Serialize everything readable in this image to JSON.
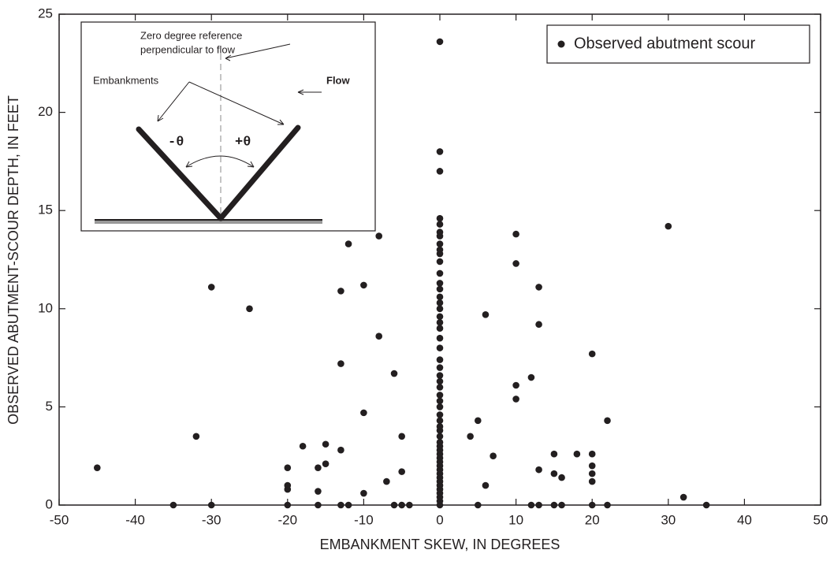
{
  "chart_data": {
    "type": "scatter",
    "x_label": "EMBANKMENT SKEW, IN DEGREES",
    "y_label": "OBSERVED ABUTMENT-SCOUR DEPTH, IN FEET",
    "xlim": [
      -50,
      50
    ],
    "xticks": [
      -50,
      -40,
      -30,
      -20,
      -10,
      0,
      10,
      20,
      30,
      40,
      50
    ],
    "ylim": [
      0,
      25
    ],
    "yticks": [
      0,
      5,
      10,
      15,
      20,
      25
    ],
    "legend": "upper right",
    "series": [
      {
        "name": "Observed abutment scour",
        "color": "#231f20",
        "x": [
          -45,
          -35,
          -32,
          -30,
          -30,
          -25,
          -20,
          -20,
          -20,
          -20,
          -18,
          -16,
          -16,
          -16,
          -15,
          -15,
          -13,
          -13,
          -13,
          -13,
          -12,
          -12,
          -10,
          -10,
          -10,
          -8,
          -8,
          -7,
          -6,
          -6,
          -5,
          -5,
          -5,
          -4,
          0,
          0,
          0,
          0,
          0,
          0,
          0,
          0,
          0,
          0,
          0,
          0,
          0,
          0,
          0,
          0,
          0,
          0,
          0,
          0,
          0,
          0,
          0,
          0,
          0,
          0,
          0,
          0,
          0,
          0,
          0,
          0,
          0,
          0,
          0,
          0,
          0,
          0,
          0,
          0,
          0,
          0,
          0,
          0,
          0,
          0,
          0,
          0,
          0,
          0,
          0,
          0,
          4,
          5,
          5,
          6,
          6,
          7,
          10,
          10,
          10,
          10,
          12,
          12,
          13,
          13,
          13,
          13,
          15,
          15,
          15,
          16,
          16,
          18,
          20,
          20,
          20,
          20,
          20,
          20,
          22,
          22,
          30,
          32,
          35
        ],
        "values": [
          1.9,
          0,
          3.5,
          0,
          11.1,
          10,
          0,
          0.8,
          1.0,
          1.9,
          3.0,
          0,
          0.7,
          1.9,
          2.1,
          3.1,
          0,
          2.8,
          7.2,
          10.9,
          0,
          13.3,
          0.6,
          4.7,
          11.2,
          8.6,
          13.7,
          1.2,
          0,
          6.7,
          0,
          1.7,
          3.5,
          0,
          0,
          0.2,
          0.4,
          0.6,
          0.8,
          1.0,
          1.2,
          1.4,
          1.6,
          1.8,
          2.0,
          2.2,
          2.4,
          2.6,
          2.8,
          3.0,
          3.2,
          3.5,
          3.8,
          4.0,
          4.3,
          4.6,
          5.0,
          5.3,
          5.6,
          6.0,
          6.3,
          6.6,
          7.0,
          7.4,
          8.0,
          8.5,
          9.0,
          9.3,
          9.6,
          10.0,
          10.3,
          10.6,
          11.0,
          11.3,
          11.8,
          12.4,
          12.8,
          13.0,
          13.3,
          13.7,
          13.9,
          14.3,
          14.6,
          17.0,
          18.0,
          23.6,
          3.5,
          0,
          4.3,
          1.0,
          9.7,
          2.5,
          5.4,
          6.1,
          12.3,
          13.8,
          0,
          6.5,
          0,
          1.8,
          9.2,
          11.1,
          0,
          1.6,
          2.6,
          0,
          1.4,
          2.6,
          0,
          1.2,
          1.6,
          2.0,
          2.6,
          7.7,
          0,
          4.3,
          14.2,
          0.4,
          0
        ]
      }
    ],
    "inset": {
      "reference": [
        "Zero degree reference",
        "perpendicular to flow"
      ],
      "embankments": "Embankments",
      "flow": "Flow",
      "negative": "-θ",
      "positive": "+θ"
    }
  }
}
